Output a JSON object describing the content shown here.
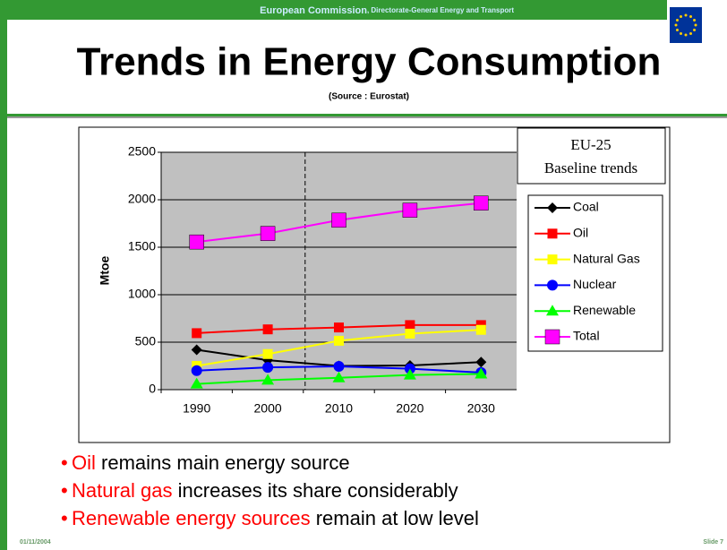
{
  "header": {
    "org": "European Commission",
    "dept": ", Directorate-General Energy and Transport",
    "title": "Trends in Energy Consumption",
    "source": "(Source : Eurostat)"
  },
  "chart_data": {
    "type": "line",
    "ylabel": "Mtoe",
    "box_title": "EU-25",
    "box_subtitle": "Baseline trends",
    "categories": [
      "1990",
      "2000",
      "2010",
      "2020",
      "2030"
    ],
    "series": [
      {
        "name": "Coal",
        "color": "#000000",
        "marker": "diamond",
        "values": [
          420,
          310,
          250,
          255,
          290
        ]
      },
      {
        "name": "Oil",
        "color": "#ff0000",
        "marker": "square",
        "values": [
          595,
          635,
          655,
          680,
          680
        ]
      },
      {
        "name": "Natural Gas",
        "color": "#ffff00",
        "marker": "square",
        "values": [
          250,
          375,
          515,
          590,
          630
        ]
      },
      {
        "name": "Nuclear",
        "color": "#0000ff",
        "marker": "circle",
        "values": [
          200,
          235,
          245,
          220,
          180
        ]
      },
      {
        "name": "Renewable",
        "color": "#00ff00",
        "marker": "triangle",
        "values": [
          60,
          100,
          125,
          155,
          165
        ]
      },
      {
        "name": "Total",
        "color": "#ff00ff",
        "marker": "bigsquare",
        "values": [
          1555,
          1645,
          1785,
          1890,
          1965
        ]
      }
    ],
    "ylim": [
      0,
      2500
    ],
    "yticks": [
      0,
      500,
      1000,
      1500,
      2000,
      2500
    ],
    "grid": true
  },
  "bullets": [
    {
      "highlight": "Oil",
      "text": " remains main energy source"
    },
    {
      "highlight": "Natural gas",
      "text": " increases its share considerably"
    },
    {
      "highlight": "Renewable energy sources",
      "text": " remain at low level"
    }
  ],
  "footer": {
    "date": "01/11/2004",
    "slide": "Slide 7"
  }
}
